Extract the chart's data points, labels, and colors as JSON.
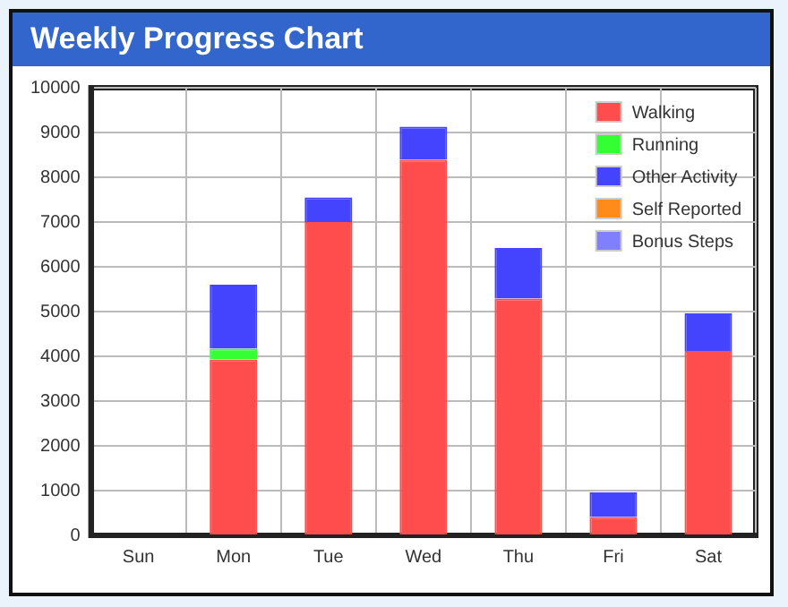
{
  "chart_data": {
    "type": "bar",
    "title": "Weekly Progress Chart",
    "categories": [
      "Sun",
      "Mon",
      "Tue",
      "Wed",
      "Thu",
      "Fri",
      "Sat"
    ],
    "stacked": true,
    "series": [
      {
        "name": "Walking",
        "color": "#ff4c4c",
        "values": [
          0,
          3930,
          7000,
          8390,
          5290,
          410,
          4120
        ]
      },
      {
        "name": "Running",
        "color": "#33ff33",
        "values": [
          0,
          240,
          0,
          0,
          0,
          0,
          0
        ]
      },
      {
        "name": "Other Activity",
        "color": "#4444ff",
        "values": [
          0,
          1430,
          550,
          740,
          1130,
          550,
          840
        ]
      },
      {
        "name": "Self Reported",
        "color": "#ff8c1a",
        "values": [
          0,
          0,
          0,
          0,
          0,
          0,
          0
        ]
      },
      {
        "name": "Bonus Steps",
        "color": "#8080ff",
        "values": [
          0,
          0,
          0,
          0,
          0,
          0,
          0
        ]
      }
    ],
    "ylim": [
      0,
      10000
    ],
    "yticks": [
      0,
      1000,
      2000,
      3000,
      4000,
      5000,
      6000,
      7000,
      8000,
      9000,
      10000
    ],
    "grid": true,
    "legend": "top right"
  }
}
